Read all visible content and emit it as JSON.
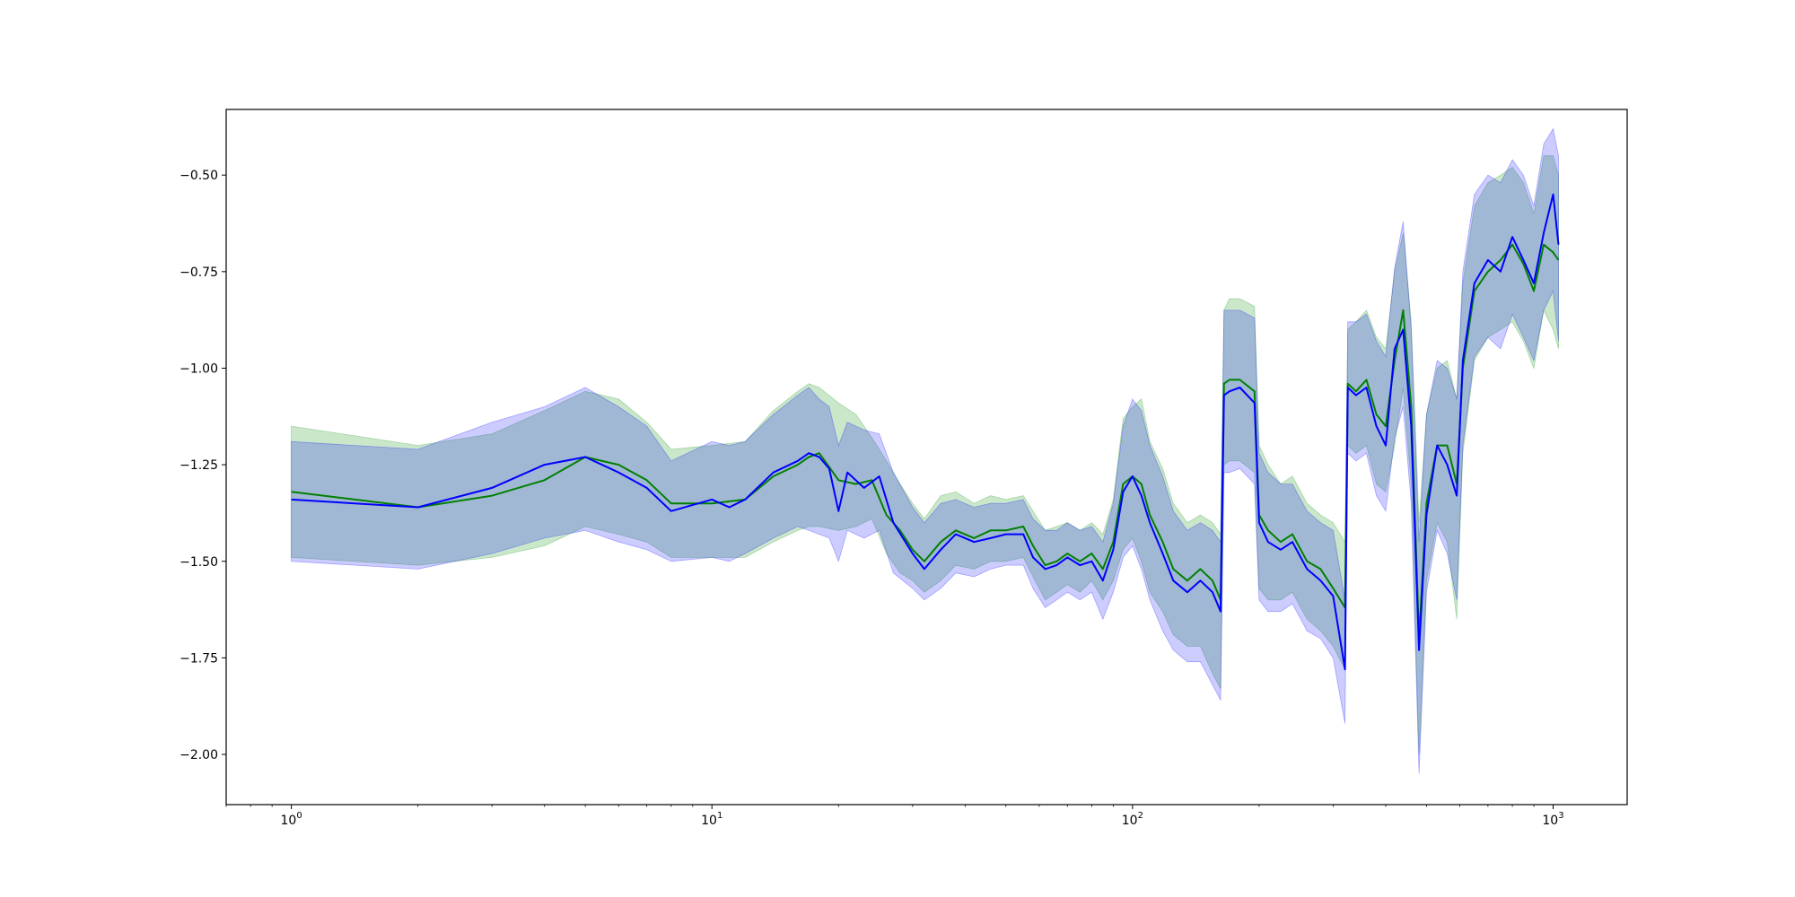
{
  "chart_data": {
    "type": "line",
    "title": "",
    "xlabel": "",
    "ylabel": "",
    "xscale": "log",
    "xlim": [
      0.7,
      1500
    ],
    "ylim": [
      -2.13,
      -0.33
    ],
    "grid": false,
    "legend": "none",
    "x_ticks": [
      {
        "value": 1,
        "base": "10",
        "exp": "0"
      },
      {
        "value": 10,
        "base": "10",
        "exp": "1"
      },
      {
        "value": 100,
        "base": "10",
        "exp": "2"
      },
      {
        "value": 1000,
        "base": "10",
        "exp": "3"
      }
    ],
    "y_ticks": [
      {
        "value": -0.5,
        "label": "−0.50"
      },
      {
        "value": -0.75,
        "label": "−0.75"
      },
      {
        "value": -1.0,
        "label": "−1.00"
      },
      {
        "value": -1.25,
        "label": "−1.25"
      },
      {
        "value": -1.5,
        "label": "−1.50"
      },
      {
        "value": -1.75,
        "label": "−1.75"
      },
      {
        "value": -2.0,
        "label": "−2.00"
      }
    ],
    "series": [
      {
        "color": "#008000",
        "band_color": "#2ca02c",
        "band_opacity": 0.25,
        "points": [
          [
            1,
            -1.32,
            -1.15,
            -1.49
          ],
          [
            2,
            -1.36,
            -1.2,
            -1.51
          ],
          [
            3,
            -1.33,
            -1.17,
            -1.49
          ],
          [
            4,
            -1.29,
            -1.11,
            -1.46
          ],
          [
            5,
            -1.23,
            -1.06,
            -1.41
          ],
          [
            6,
            -1.25,
            -1.08,
            -1.43
          ],
          [
            7,
            -1.29,
            -1.14,
            -1.45
          ],
          [
            8,
            -1.35,
            -1.21,
            -1.49
          ],
          [
            10,
            -1.35,
            -1.2,
            -1.49
          ],
          [
            12,
            -1.34,
            -1.19,
            -1.49
          ],
          [
            14,
            -1.28,
            -1.11,
            -1.45
          ],
          [
            16,
            -1.25,
            -1.06,
            -1.42
          ],
          [
            17,
            -1.23,
            -1.04,
            -1.41
          ],
          [
            18,
            -1.22,
            -1.05,
            -1.41
          ],
          [
            20,
            -1.29,
            -1.09,
            -1.42
          ],
          [
            22,
            -1.3,
            -1.12,
            -1.41
          ],
          [
            24,
            -1.29,
            -1.18,
            -1.39
          ],
          [
            26,
            -1.38,
            -1.24,
            -1.48
          ],
          [
            28,
            -1.42,
            -1.3,
            -1.53
          ],
          [
            30,
            -1.47,
            -1.35,
            -1.55
          ],
          [
            32,
            -1.5,
            -1.39,
            -1.58
          ],
          [
            35,
            -1.45,
            -1.33,
            -1.55
          ],
          [
            38,
            -1.42,
            -1.32,
            -1.51
          ],
          [
            42,
            -1.44,
            -1.35,
            -1.52
          ],
          [
            46,
            -1.42,
            -1.33,
            -1.5
          ],
          [
            50,
            -1.42,
            -1.34,
            -1.5
          ],
          [
            55,
            -1.41,
            -1.33,
            -1.49
          ],
          [
            58,
            -1.46,
            -1.37,
            -1.54
          ],
          [
            62,
            -1.51,
            -1.42,
            -1.6
          ],
          [
            66,
            -1.5,
            -1.41,
            -1.58
          ],
          [
            70,
            -1.48,
            -1.4,
            -1.56
          ],
          [
            75,
            -1.5,
            -1.42,
            -1.58
          ],
          [
            80,
            -1.48,
            -1.4,
            -1.55
          ],
          [
            85,
            -1.52,
            -1.43,
            -1.6
          ],
          [
            90,
            -1.45,
            -1.34,
            -1.55
          ],
          [
            95,
            -1.3,
            -1.13,
            -1.47
          ],
          [
            100,
            -1.28,
            -1.1,
            -1.44
          ],
          [
            105,
            -1.3,
            -1.08,
            -1.5
          ],
          [
            110,
            -1.38,
            -1.19,
            -1.58
          ],
          [
            118,
            -1.45,
            -1.26,
            -1.63
          ],
          [
            125,
            -1.52,
            -1.35,
            -1.69
          ],
          [
            135,
            -1.55,
            -1.4,
            -1.72
          ],
          [
            145,
            -1.52,
            -1.38,
            -1.72
          ],
          [
            155,
            -1.55,
            -1.4,
            -1.79
          ],
          [
            162,
            -1.6,
            -1.43,
            -1.83
          ],
          [
            165,
            -1.04,
            -0.85,
            -1.25
          ],
          [
            170,
            -1.03,
            -0.82,
            -1.24
          ],
          [
            180,
            -1.03,
            -0.82,
            -1.24
          ],
          [
            195,
            -1.06,
            -0.84,
            -1.27
          ],
          [
            200,
            -1.38,
            -1.2,
            -1.57
          ],
          [
            210,
            -1.42,
            -1.25,
            -1.6
          ],
          [
            225,
            -1.45,
            -1.3,
            -1.6
          ],
          [
            240,
            -1.43,
            -1.28,
            -1.58
          ],
          [
            260,
            -1.5,
            -1.35,
            -1.65
          ],
          [
            280,
            -1.52,
            -1.38,
            -1.68
          ],
          [
            300,
            -1.57,
            -1.4,
            -1.72
          ],
          [
            320,
            -1.62,
            -1.45,
            -1.78
          ],
          [
            325,
            -1.04,
            -0.9,
            -1.2
          ],
          [
            340,
            -1.06,
            -0.88,
            -1.22
          ],
          [
            360,
            -1.03,
            -0.85,
            -1.2
          ],
          [
            380,
            -1.12,
            -0.92,
            -1.3
          ],
          [
            400,
            -1.15,
            -0.95,
            -1.32
          ],
          [
            420,
            -0.98,
            -0.75,
            -1.2
          ],
          [
            440,
            -0.85,
            -0.65,
            -1.05
          ],
          [
            460,
            -1.1,
            -0.88,
            -1.3
          ],
          [
            480,
            -1.7,
            -1.4,
            -2.0
          ],
          [
            500,
            -1.35,
            -1.12,
            -1.55
          ],
          [
            530,
            -1.2,
            -1.0,
            -1.4
          ],
          [
            560,
            -1.2,
            -0.98,
            -1.45
          ],
          [
            590,
            -1.3,
            -1.08,
            -1.65
          ],
          [
            610,
            -1.0,
            -0.78,
            -1.22
          ],
          [
            650,
            -0.8,
            -0.58,
            -0.98
          ],
          [
            700,
            -0.75,
            -0.52,
            -0.92
          ],
          [
            750,
            -0.72,
            -0.5,
            -0.9
          ],
          [
            800,
            -0.68,
            -0.48,
            -0.88
          ],
          [
            850,
            -0.73,
            -0.52,
            -0.93
          ],
          [
            900,
            -0.8,
            -0.6,
            -1.0
          ],
          [
            950,
            -0.68,
            -0.45,
            -0.85
          ],
          [
            1000,
            -0.7,
            -0.45,
            -0.9
          ],
          [
            1030,
            -0.72,
            -0.5,
            -0.95
          ]
        ]
      },
      {
        "color": "#0000ff",
        "band_color": "#0000ff",
        "band_opacity": 0.2,
        "points": [
          [
            1,
            -1.34,
            -1.19,
            -1.5
          ],
          [
            2,
            -1.36,
            -1.21,
            -1.52
          ],
          [
            3,
            -1.31,
            -1.14,
            -1.48
          ],
          [
            4,
            -1.25,
            -1.1,
            -1.44
          ],
          [
            5,
            -1.23,
            -1.05,
            -1.42
          ],
          [
            6,
            -1.27,
            -1.1,
            -1.45
          ],
          [
            7,
            -1.31,
            -1.15,
            -1.47
          ],
          [
            8,
            -1.37,
            -1.24,
            -1.5
          ],
          [
            10,
            -1.34,
            -1.19,
            -1.49
          ],
          [
            11,
            -1.36,
            -1.2,
            -1.5
          ],
          [
            12,
            -1.34,
            -1.19,
            -1.48
          ],
          [
            14,
            -1.27,
            -1.12,
            -1.44
          ],
          [
            16,
            -1.24,
            -1.07,
            -1.41
          ],
          [
            17,
            -1.22,
            -1.05,
            -1.42
          ],
          [
            18,
            -1.23,
            -1.08,
            -1.43
          ],
          [
            19,
            -1.26,
            -1.1,
            -1.44
          ],
          [
            20,
            -1.37,
            -1.2,
            -1.5
          ],
          [
            21,
            -1.27,
            -1.14,
            -1.42
          ],
          [
            23,
            -1.31,
            -1.16,
            -1.44
          ],
          [
            25,
            -1.28,
            -1.17,
            -1.42
          ],
          [
            27,
            -1.4,
            -1.27,
            -1.53
          ],
          [
            30,
            -1.48,
            -1.36,
            -1.57
          ],
          [
            32,
            -1.52,
            -1.4,
            -1.6
          ],
          [
            35,
            -1.47,
            -1.35,
            -1.57
          ],
          [
            38,
            -1.43,
            -1.34,
            -1.53
          ],
          [
            42,
            -1.45,
            -1.36,
            -1.54
          ],
          [
            46,
            -1.44,
            -1.35,
            -1.52
          ],
          [
            50,
            -1.43,
            -1.35,
            -1.51
          ],
          [
            55,
            -1.43,
            -1.34,
            -1.51
          ],
          [
            58,
            -1.49,
            -1.39,
            -1.57
          ],
          [
            62,
            -1.52,
            -1.42,
            -1.62
          ],
          [
            66,
            -1.51,
            -1.42,
            -1.6
          ],
          [
            70,
            -1.49,
            -1.4,
            -1.58
          ],
          [
            75,
            -1.51,
            -1.42,
            -1.6
          ],
          [
            80,
            -1.5,
            -1.41,
            -1.58
          ],
          [
            85,
            -1.55,
            -1.45,
            -1.65
          ],
          [
            90,
            -1.47,
            -1.35,
            -1.58
          ],
          [
            95,
            -1.32,
            -1.15,
            -1.49
          ],
          [
            100,
            -1.28,
            -1.08,
            -1.46
          ],
          [
            105,
            -1.33,
            -1.11,
            -1.52
          ],
          [
            110,
            -1.4,
            -1.2,
            -1.6
          ],
          [
            118,
            -1.48,
            -1.28,
            -1.68
          ],
          [
            125,
            -1.55,
            -1.37,
            -1.73
          ],
          [
            135,
            -1.58,
            -1.42,
            -1.76
          ],
          [
            145,
            -1.55,
            -1.4,
            -1.76
          ],
          [
            155,
            -1.58,
            -1.42,
            -1.82
          ],
          [
            162,
            -1.63,
            -1.45,
            -1.86
          ],
          [
            165,
            -1.07,
            -0.85,
            -1.27
          ],
          [
            170,
            -1.06,
            -0.85,
            -1.27
          ],
          [
            180,
            -1.05,
            -0.85,
            -1.26
          ],
          [
            195,
            -1.09,
            -0.87,
            -1.3
          ],
          [
            200,
            -1.4,
            -1.22,
            -1.6
          ],
          [
            210,
            -1.45,
            -1.27,
            -1.63
          ],
          [
            225,
            -1.47,
            -1.3,
            -1.63
          ],
          [
            240,
            -1.45,
            -1.3,
            -1.61
          ],
          [
            260,
            -1.52,
            -1.37,
            -1.68
          ],
          [
            280,
            -1.55,
            -1.4,
            -1.7
          ],
          [
            300,
            -1.59,
            -1.42,
            -1.75
          ],
          [
            320,
            -1.78,
            -1.6,
            -1.92
          ],
          [
            325,
            -1.05,
            -0.88,
            -1.22
          ],
          [
            340,
            -1.07,
            -0.88,
            -1.24
          ],
          [
            360,
            -1.05,
            -0.86,
            -1.22
          ],
          [
            380,
            -1.15,
            -0.93,
            -1.33
          ],
          [
            400,
            -1.2,
            -0.97,
            -1.37
          ],
          [
            420,
            -0.95,
            -0.74,
            -1.18
          ],
          [
            440,
            -0.9,
            -0.62,
            -1.1
          ],
          [
            460,
            -1.15,
            -0.9,
            -1.35
          ],
          [
            480,
            -1.73,
            -1.45,
            -2.05
          ],
          [
            500,
            -1.38,
            -1.12,
            -1.58
          ],
          [
            530,
            -1.2,
            -0.98,
            -1.42
          ],
          [
            560,
            -1.25,
            -1.0,
            -1.48
          ],
          [
            590,
            -1.33,
            -1.08,
            -1.6
          ],
          [
            610,
            -0.98,
            -0.75,
            -1.2
          ],
          [
            650,
            -0.78,
            -0.55,
            -0.97
          ],
          [
            700,
            -0.72,
            -0.5,
            -0.92
          ],
          [
            750,
            -0.75,
            -0.52,
            -0.95
          ],
          [
            800,
            -0.66,
            -0.46,
            -0.86
          ],
          [
            850,
            -0.72,
            -0.5,
            -0.92
          ],
          [
            900,
            -0.78,
            -0.58,
            -0.98
          ],
          [
            950,
            -0.65,
            -0.42,
            -0.85
          ],
          [
            1000,
            -0.55,
            -0.38,
            -0.8
          ],
          [
            1030,
            -0.68,
            -0.45,
            -0.93
          ]
        ]
      }
    ]
  }
}
